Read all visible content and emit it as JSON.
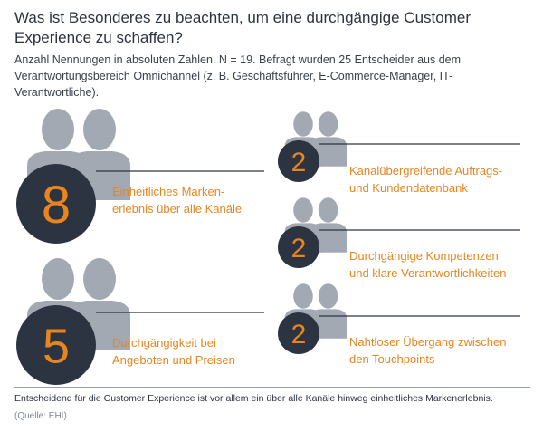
{
  "title": "Was ist Besonderes zu beachten, um eine durchgängige Customer Experience zu schaffen?",
  "subtitle": "Anzahl Nennungen in absoluten Zahlen. N = 19. Befragt wurden 25 Entscheider aus dem Verantwortungsbereich Omnichannel (z. B. Geschäftsführer, E-Commerce-Manager, IT-Verantwortliche).",
  "colors": {
    "person": "#a3a9b3",
    "circle": "#2d3441",
    "number": "#e8851f",
    "label": "#e8851f",
    "line": "#2d3441"
  },
  "chart_data": {
    "type": "pictograph",
    "unit": "Nennungen",
    "n": 19,
    "items": [
      {
        "value": 8,
        "label_lines": [
          "Einheitliches Marken-",
          "erlebnis über alle Kanäle"
        ]
      },
      {
        "value": 5,
        "label_lines": [
          "Durchgängigkeit bei",
          "Angeboten und Preisen"
        ]
      },
      {
        "value": 2,
        "label_lines": [
          "Kanalübergreifende Auftrags-",
          "und Kundendatenbank"
        ]
      },
      {
        "value": 2,
        "label_lines": [
          "Durchgängige Kompetenzen",
          "und klare Verantwortlichkeiten"
        ]
      },
      {
        "value": 2,
        "label_lines": [
          "Nahtloser Übergang zwischen",
          "den Touchpoints"
        ]
      }
    ]
  },
  "footer": {
    "note": "Entscheidend für die Customer Experience ist vor allem ein über alle Kanäle hinweg einheitliches Markenerlebnis.",
    "source": "(Quelle: EHI)"
  }
}
